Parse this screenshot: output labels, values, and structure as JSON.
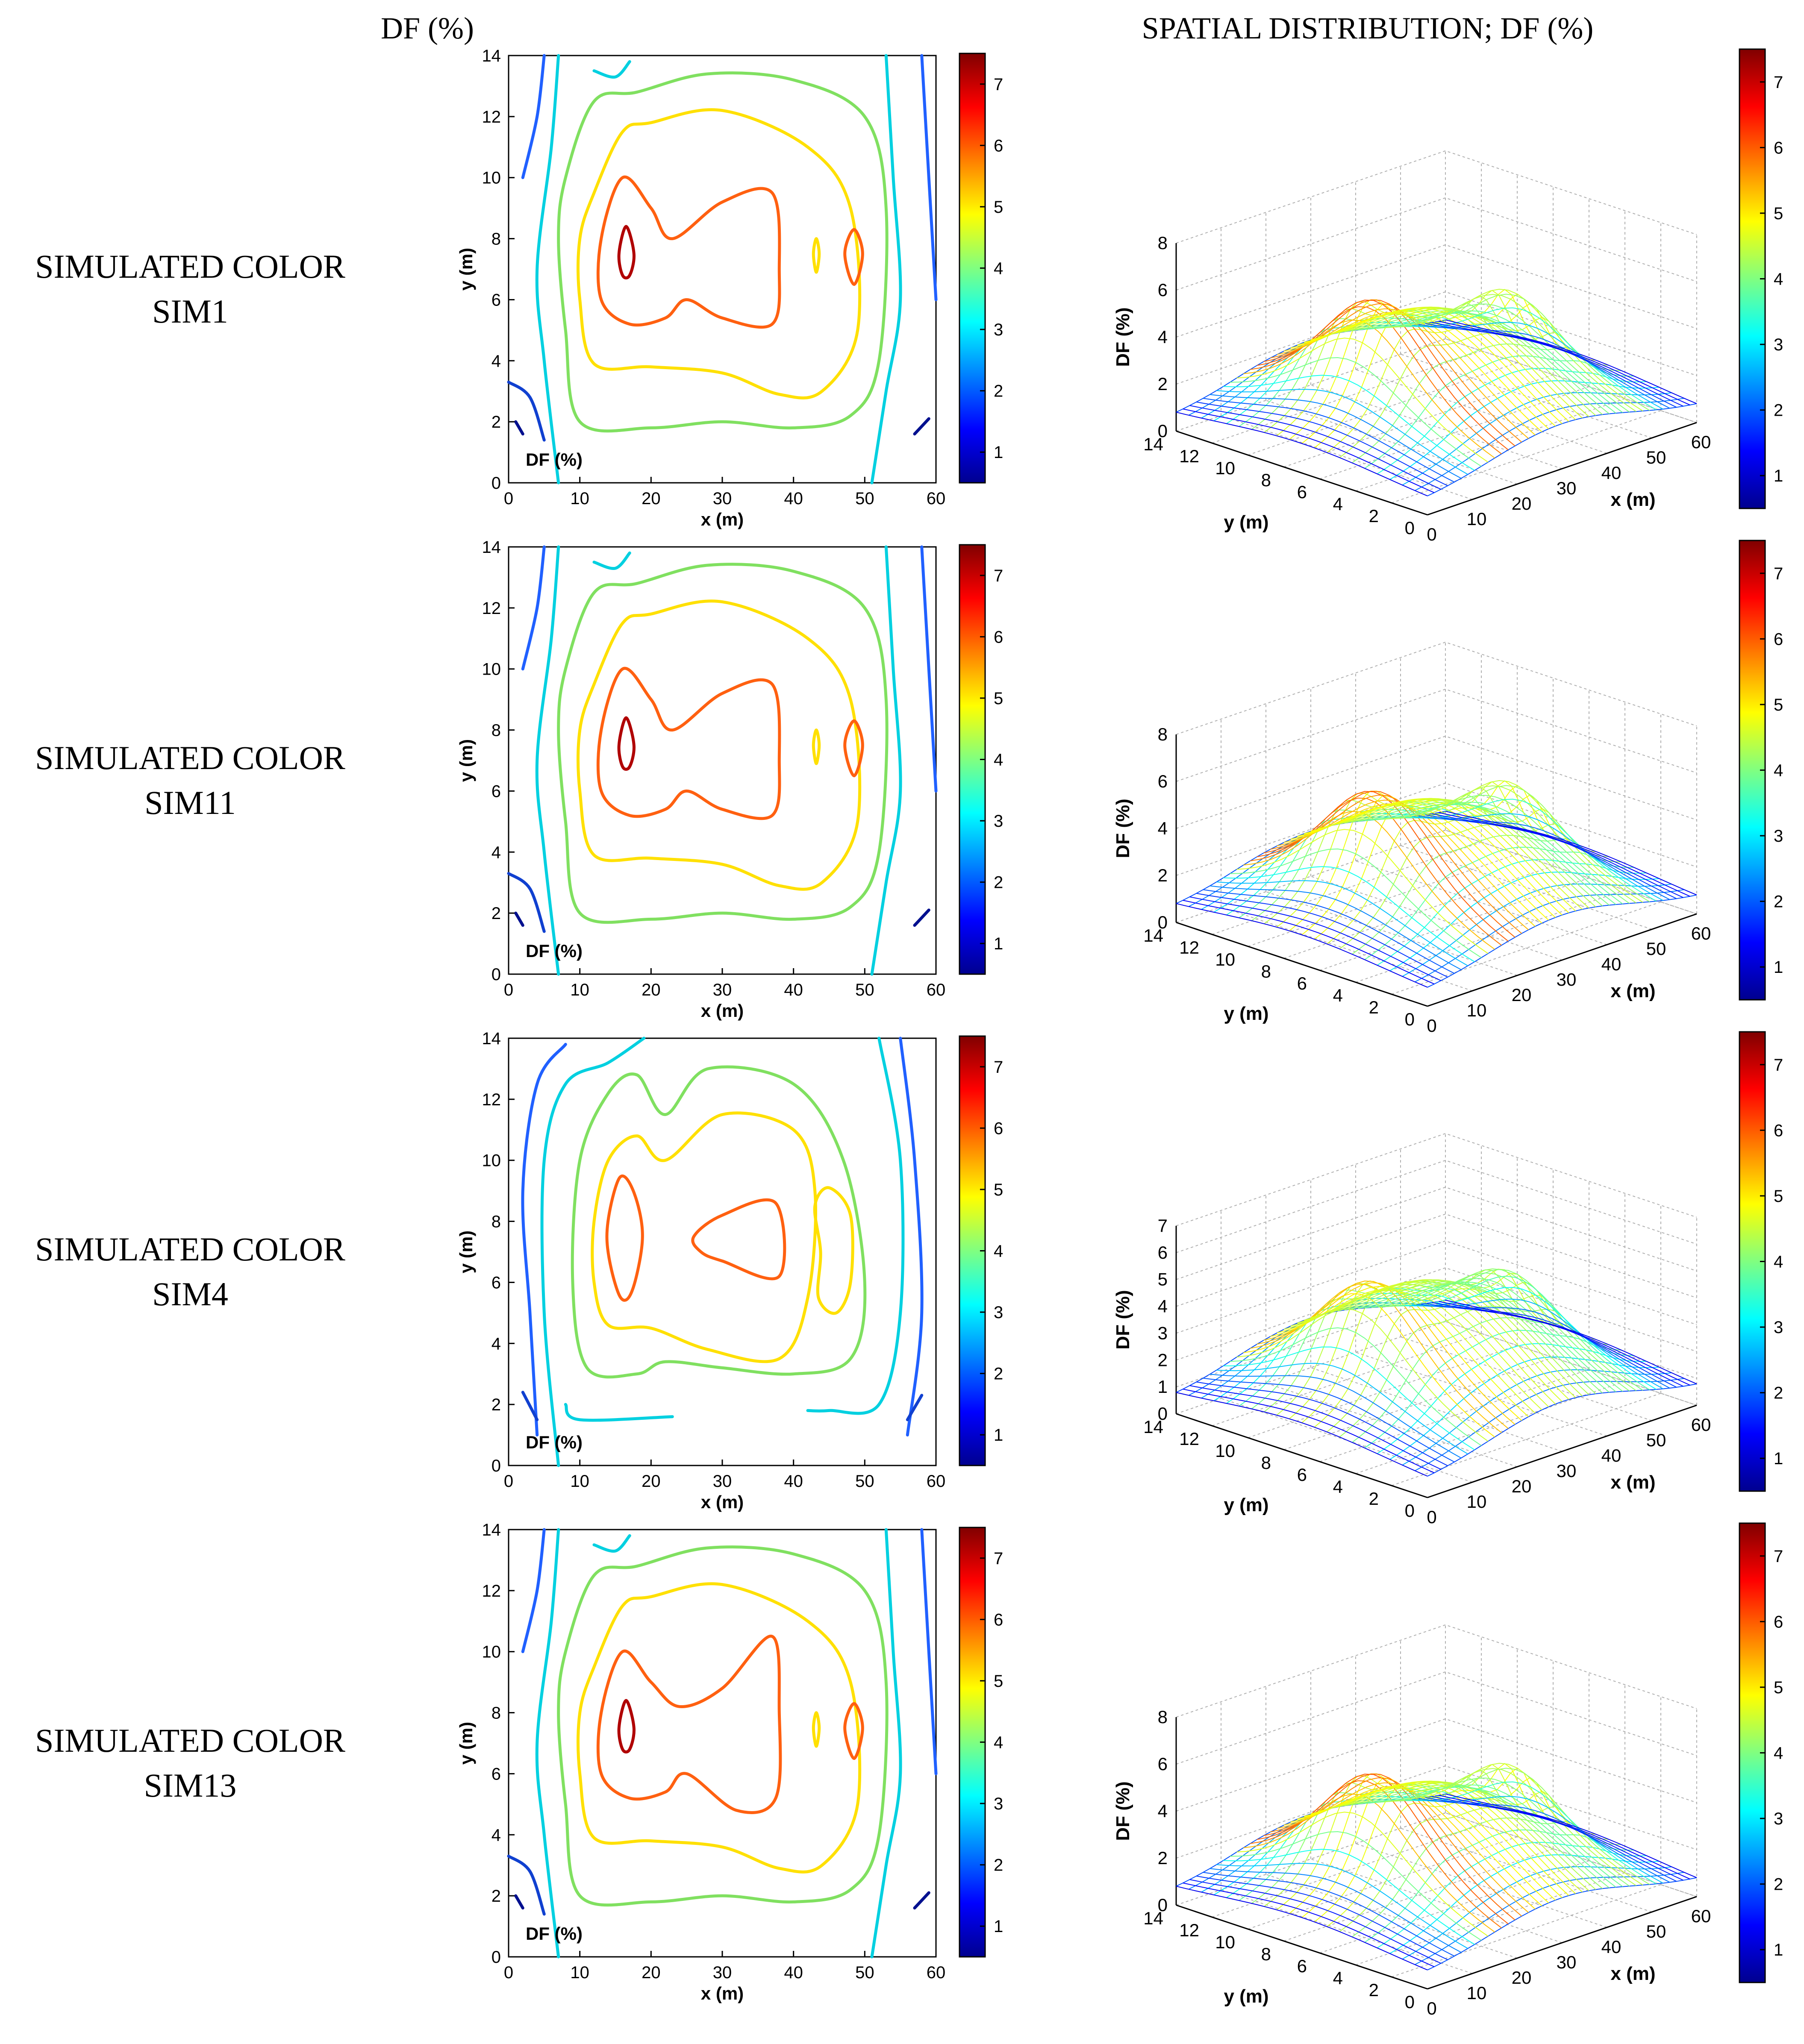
{
  "headers": {
    "left": "DF (%)",
    "right": "SPATIAL DISTRIBUTION; DF (%)"
  },
  "rows": [
    {
      "label_line1": "SIMULATED COLOR",
      "label_line2": "SIM1",
      "contour": {
        "xlabel": "x (m)",
        "ylabel": "y (m)",
        "inset_label": "DF (%)",
        "xlim": [
          0,
          60
        ],
        "ylim": [
          0,
          14
        ],
        "xticks": [
          "0",
          "10",
          "20",
          "30",
          "40",
          "50",
          "60"
        ],
        "yticks": [
          "0",
          "2",
          "4",
          "6",
          "8",
          "10",
          "12",
          "14"
        ],
        "colorbar_ticks": [
          "1",
          "2",
          "3",
          "4",
          "5",
          "6",
          "7"
        ],
        "colorbar_range": [
          0.5,
          7.5
        ]
      },
      "surface": {
        "zlabel": "DF (%)",
        "xlabel": "x (m)",
        "ylabel": "y (m)",
        "zticks": [
          "0",
          "2",
          "4",
          "6",
          "8"
        ],
        "xticks": [
          "0",
          "10",
          "20",
          "30",
          "40",
          "50",
          "60"
        ],
        "yticks": [
          "0",
          "2",
          "4",
          "6",
          "8",
          "10",
          "12",
          "14"
        ],
        "colorbar_ticks": [
          "1",
          "2",
          "3",
          "4",
          "5",
          "6",
          "7"
        ]
      }
    },
    {
      "label_line1": "SIMULATED COLOR",
      "label_line2": "SIM11",
      "contour": {
        "xlabel": "x (m)",
        "ylabel": "y (m)",
        "inset_label": "DF (%)",
        "xlim": [
          0,
          60
        ],
        "ylim": [
          0,
          14
        ],
        "xticks": [
          "0",
          "10",
          "20",
          "30",
          "40",
          "50",
          "60"
        ],
        "yticks": [
          "0",
          "2",
          "4",
          "6",
          "8",
          "10",
          "12",
          "14"
        ],
        "colorbar_ticks": [
          "1",
          "2",
          "3",
          "4",
          "5",
          "6",
          "7"
        ],
        "colorbar_range": [
          0.5,
          7.5
        ]
      },
      "surface": {
        "zlabel": "DF (%)",
        "xlabel": "x (m)",
        "ylabel": "y (m)",
        "zticks": [
          "0",
          "2",
          "4",
          "6",
          "8"
        ],
        "xticks": [
          "0",
          "10",
          "20",
          "30",
          "40",
          "50",
          "60"
        ],
        "yticks": [
          "0",
          "2",
          "4",
          "6",
          "8",
          "10",
          "12",
          "14"
        ],
        "colorbar_ticks": [
          "1",
          "2",
          "3",
          "4",
          "5",
          "6",
          "7"
        ]
      }
    },
    {
      "label_line1": "SIMULATED COLOR",
      "label_line2": "SIM4",
      "contour": {
        "xlabel": "x (m)",
        "ylabel": "y (m)",
        "inset_label": "DF (%)",
        "xlim": [
          0,
          60
        ],
        "ylim": [
          0,
          14
        ],
        "xticks": [
          "0",
          "10",
          "20",
          "30",
          "40",
          "50",
          "60"
        ],
        "yticks": [
          "0",
          "2",
          "4",
          "6",
          "8",
          "10",
          "12",
          "14"
        ],
        "colorbar_ticks": [
          "1",
          "2",
          "3",
          "4",
          "5",
          "6",
          "7"
        ],
        "colorbar_range": [
          0.5,
          7.5
        ]
      },
      "surface": {
        "zlabel": "DF (%)",
        "xlabel": "x (m)",
        "ylabel": "y (m)",
        "zticks": [
          "0",
          "1",
          "2",
          "3",
          "4",
          "5",
          "6",
          "7"
        ],
        "xticks": [
          "0",
          "10",
          "20",
          "30",
          "40",
          "50",
          "60"
        ],
        "yticks": [
          "0",
          "2",
          "4",
          "6",
          "8",
          "10",
          "12",
          "14"
        ],
        "colorbar_ticks": [
          "1",
          "2",
          "3",
          "4",
          "5",
          "6",
          "7"
        ]
      }
    },
    {
      "label_line1": "SIMULATED COLOR",
      "label_line2": "SIM13",
      "contour": {
        "xlabel": "x (m)",
        "ylabel": "y (m)",
        "inset_label": "DF (%)",
        "xlim": [
          0,
          60
        ],
        "ylim": [
          0,
          14
        ],
        "xticks": [
          "0",
          "10",
          "20",
          "30",
          "40",
          "50",
          "60"
        ],
        "yticks": [
          "0",
          "2",
          "4",
          "6",
          "8",
          "10",
          "12",
          "14"
        ],
        "colorbar_ticks": [
          "1",
          "2",
          "3",
          "4",
          "5",
          "6",
          "7"
        ],
        "colorbar_range": [
          0.5,
          7.5
        ]
      },
      "surface": {
        "zlabel": "DF (%)",
        "xlabel": "x (m)",
        "ylabel": "y (m)",
        "zticks": [
          "0",
          "2",
          "4",
          "6",
          "8"
        ],
        "xticks": [
          "0",
          "10",
          "20",
          "30",
          "40",
          "50",
          "60"
        ],
        "yticks": [
          "0",
          "2",
          "4",
          "6",
          "8",
          "10",
          "12",
          "14"
        ],
        "colorbar_ticks": [
          "1",
          "2",
          "3",
          "4",
          "5",
          "6",
          "7"
        ]
      }
    }
  ],
  "chart_data": [
    {
      "type": "contour",
      "panel": "SIM1 contour",
      "title": "DF (%)",
      "xlabel": "x (m)",
      "ylabel": "y (m)",
      "xlim": [
        0,
        60
      ],
      "ylim": [
        0,
        14
      ],
      "levels": [
        1,
        2,
        3,
        4,
        5,
        6,
        7
      ],
      "peaks": [
        {
          "x": 17,
          "y": 7.5,
          "value": 7
        },
        {
          "x": 48.5,
          "y": 7.5,
          "value": 6
        },
        {
          "x": 43,
          "y": 7.5,
          "value": 5
        }
      ],
      "colormap": "jet"
    },
    {
      "type": "surface",
      "panel": "SIM1 surface",
      "title": "SPATIAL DISTRIBUTION; DF (%)",
      "xlabel": "x (m)",
      "ylabel": "y (m)",
      "zlabel": "DF (%)",
      "xlim": [
        0,
        60
      ],
      "ylim": [
        0,
        14
      ],
      "zlim": [
        0,
        8
      ],
      "peaks": [
        {
          "x": 17,
          "y": 7.5,
          "value": 7
        },
        {
          "x": 48.5,
          "y": 7.5,
          "value": 6.8
        }
      ],
      "colormap": "jet"
    },
    {
      "type": "contour",
      "panel": "SIM11 contour",
      "title": "DF (%)",
      "xlabel": "x (m)",
      "ylabel": "y (m)",
      "xlim": [
        0,
        60
      ],
      "ylim": [
        0,
        14
      ],
      "levels": [
        1,
        2,
        3,
        4,
        5,
        6,
        7
      ],
      "peaks": [
        {
          "x": 17,
          "y": 7.6,
          "value": 7
        },
        {
          "x": 48.5,
          "y": 7.6,
          "value": 6
        },
        {
          "x": 43,
          "y": 7.6,
          "value": 5
        }
      ],
      "colormap": "jet"
    },
    {
      "type": "surface",
      "panel": "SIM11 surface",
      "title": "SPATIAL DISTRIBUTION; DF (%)",
      "xlabel": "x (m)",
      "ylabel": "y (m)",
      "zlabel": "DF (%)",
      "xlim": [
        0,
        60
      ],
      "ylim": [
        0,
        14
      ],
      "zlim": [
        0,
        8
      ],
      "peaks": [
        {
          "x": 17,
          "y": 7.6,
          "value": 7
        },
        {
          "x": 48.5,
          "y": 7.6,
          "value": 6.8
        }
      ],
      "colormap": "jet"
    },
    {
      "type": "contour",
      "panel": "SIM4 contour",
      "title": "DF (%)",
      "xlabel": "x (m)",
      "ylabel": "y (m)",
      "xlim": [
        0,
        60
      ],
      "ylim": [
        0,
        14
      ],
      "levels": [
        1,
        2,
        3,
        4,
        5,
        6
      ],
      "peaks": [
        {
          "x": 16,
          "y": 7.5,
          "value": 6
        },
        {
          "x": 33,
          "y": 7.5,
          "value": 6
        },
        {
          "x": 46,
          "y": 6.5,
          "value": 5
        }
      ],
      "colormap": "jet"
    },
    {
      "type": "surface",
      "panel": "SIM4 surface",
      "title": "SPATIAL DISTRIBUTION; DF (%)",
      "xlabel": "x (m)",
      "ylabel": "y (m)",
      "zlabel": "DF (%)",
      "xlim": [
        0,
        60
      ],
      "ylim": [
        0,
        14
      ],
      "zlim": [
        0,
        7
      ],
      "peaks": [
        {
          "x": 16,
          "y": 7.5,
          "value": 6.5
        },
        {
          "x": 48,
          "y": 7.5,
          "value": 6
        }
      ],
      "colormap": "jet"
    },
    {
      "type": "contour",
      "panel": "SIM13 contour",
      "title": "DF (%)",
      "xlabel": "x (m)",
      "ylabel": "y (m)",
      "xlim": [
        0,
        60
      ],
      "ylim": [
        0,
        14
      ],
      "levels": [
        1,
        2,
        3,
        4,
        5,
        6,
        7
      ],
      "peaks": [
        {
          "x": 17,
          "y": 7.5,
          "value": 7
        },
        {
          "x": 48.5,
          "y": 7.5,
          "value": 6
        },
        {
          "x": 43,
          "y": 7.5,
          "value": 5
        }
      ],
      "colormap": "jet"
    },
    {
      "type": "surface",
      "panel": "SIM13 surface",
      "title": "SPATIAL DISTRIBUTION; DF (%)",
      "xlabel": "x (m)",
      "ylabel": "y (m)",
      "zlabel": "DF (%)",
      "xlim": [
        0,
        60
      ],
      "ylim": [
        0,
        14
      ],
      "zlim": [
        0,
        8
      ],
      "peaks": [
        {
          "x": 17,
          "y": 7.5,
          "value": 7
        },
        {
          "x": 48.5,
          "y": 7.5,
          "value": 6.6
        }
      ],
      "colormap": "jet"
    }
  ]
}
